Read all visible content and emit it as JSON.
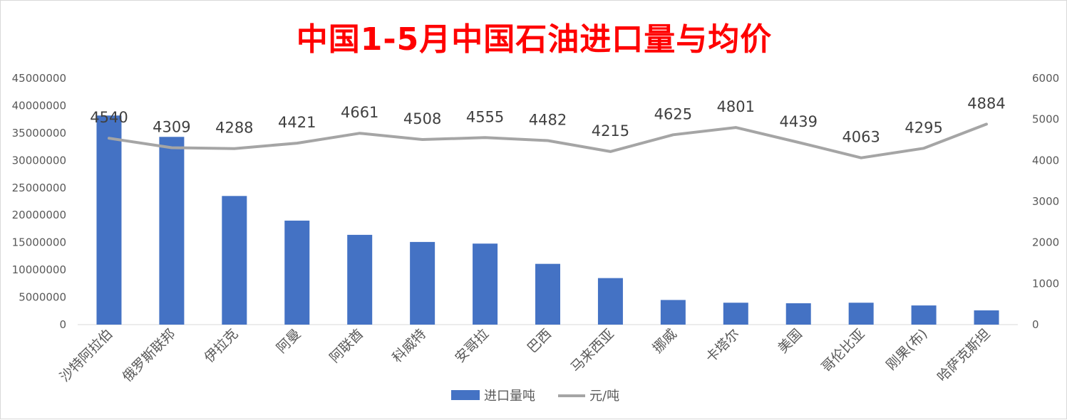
{
  "chart_data": {
    "type": "bar",
    "title": "中国1-5月中国石油进口量与均价",
    "categories": [
      "沙特阿拉伯",
      "俄罗斯联邦",
      "伊拉克",
      "阿曼",
      "阿联酋",
      "科威特",
      "安哥拉",
      "巴西",
      "马来西亚",
      "挪威",
      "卡塔尔",
      "美国",
      "哥伦比亚",
      "刚果(布)",
      "哈萨克斯坦"
    ],
    "series": [
      {
        "name": "进口量吨",
        "type": "bar",
        "axis": "left",
        "color": "#4472c4",
        "values": [
          38200000,
          34300000,
          23500000,
          19000000,
          16400000,
          15100000,
          14800000,
          11100000,
          8500000,
          4500000,
          4000000,
          3900000,
          4000000,
          3500000,
          2600000
        ]
      },
      {
        "name": "元/吨",
        "type": "line",
        "axis": "right",
        "color": "#a5a5a5",
        "values": [
          4540,
          4309,
          4288,
          4421,
          4661,
          4508,
          4555,
          4482,
          4215,
          4625,
          4801,
          4439,
          4063,
          4295,
          4884
        ],
        "data_labels": [
          "4540",
          "4309",
          "4288",
          "4421",
          "4661",
          "4508",
          "4555",
          "4482",
          "4215",
          "4625",
          "4801",
          "4439",
          "4063",
          "4295",
          "4884"
        ]
      }
    ],
    "y_left": {
      "ylim": [
        0,
        45000000
      ],
      "ticks": [
        "0",
        "5000000",
        "10000000",
        "15000000",
        "20000000",
        "25000000",
        "30000000",
        "35000000",
        "40000000",
        "45000000"
      ]
    },
    "y_right": {
      "ylim": [
        0,
        6000
      ],
      "ticks": [
        "0",
        "1000",
        "2000",
        "3000",
        "4000",
        "5000",
        "6000"
      ]
    },
    "grid": false,
    "legend": "bottom"
  }
}
